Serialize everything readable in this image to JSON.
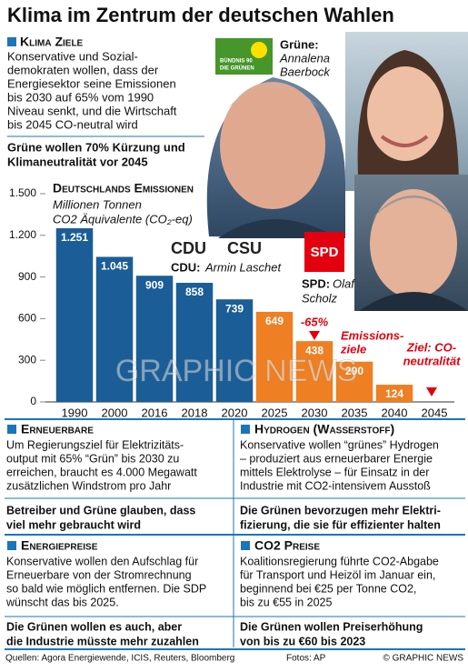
{
  "title": "Klima im Zentrum der deutschen Wahlen",
  "intro": {
    "heading": "Klima Ziele",
    "body": [
      "Konservative und Sozial-",
      "demokraten wollen, dass der",
      "Energiesektor seine Emissionen",
      "bis 2030 auf 65% vom 1990",
      "Niveau senkt, und die Wirtschaft",
      "bis 2045 CO-neutral wird"
    ],
    "highlight": [
      "Grüne wollen 70% Kürzung und",
      "Klimaneutralität vor 2045"
    ]
  },
  "parties": {
    "greens": {
      "logo": [
        "BÜNDNIS 90",
        "DIE GRÜNEN"
      ],
      "label": "Grüne:",
      "name": [
        "Annalena",
        "Baerbock"
      ]
    },
    "cdu": {
      "logo": [
        "CDU",
        "CSU"
      ],
      "label": "CDU:",
      "name": "Armin Laschet"
    },
    "spd": {
      "logo": "SPD",
      "label": "SPD:",
      "name": [
        "Olaf",
        "Scholz"
      ]
    }
  },
  "chart_data": {
    "type": "bar",
    "title": "Deutschlands Emissionen",
    "subtitle": [
      "Millionen Tonnen",
      "CO2 Äquivalente (CO₂-eq)"
    ],
    "categories": [
      "1990",
      "2000",
      "2016",
      "2018",
      "2020",
      "2025",
      "2030",
      "2035",
      "2040",
      "2045"
    ],
    "values": [
      1251,
      1045,
      909,
      858,
      739,
      649,
      438,
      290,
      124,
      null
    ],
    "value_labels": [
      "1.251",
      "1.045",
      "909",
      "858",
      "739",
      "649",
      "438",
      "290",
      "124",
      null
    ],
    "colors": [
      "#1b5d97",
      "#1b5d97",
      "#1b5d97",
      "#1b5d97",
      "#1b5d97",
      "#ee7f22",
      "#ee7f22",
      "#ee7f22",
      "#ee7f22",
      "#ee7f22"
    ],
    "ylim": [
      0,
      1500
    ],
    "yticks": [
      0,
      300,
      600,
      900,
      {
        "value": 1200,
        "label": "1.200"
      },
      {
        "value": 1500,
        "label": "1.500"
      }
    ],
    "grid": false,
    "annotations": [
      [
        "-65%"
      ],
      [
        "Emissions-",
        "ziele"
      ],
      [
        "Ziel: CO-",
        "neutralität"
      ]
    ]
  },
  "watermark": "GRAPHIC NEWS",
  "sections": [
    {
      "heading": "Erneuerbare",
      "body": [
        "Um Regierungsziel für Elektrizitäts-",
        "output mit 65% “Grün” bis 2030 zu",
        "erreichen, braucht es 4.000 Megawatt",
        "zusätzlichen Windstrom pro Jahr"
      ],
      "highlight": [
        "Betreiber und Grüne glauben, dass",
        "viel mehr gebraucht wird"
      ]
    },
    {
      "heading": "Hydrogen (Wasserstoff)",
      "body": [
        "Konservative wollen “grünes”  Hydrogen",
        "– produziert aus erneuerbarer Energie",
        "mittels Elektrolyse – für Einsatz in der",
        "Industrie mit CO2-intensivem Ausstoß"
      ],
      "highlight": [
        "Die Grünen bevorzugen mehr Elektri-",
        "fizierung, die sie für effizienter halten"
      ]
    },
    {
      "heading": "Energiepreise",
      "body": [
        "Konservative wollen den Aufschlag für",
        "Erneuerbare von der Stromrechnung",
        "so bald wie möglich entfernen. Die SDP",
        "wünscht das bis 2025."
      ],
      "highlight": [
        "Die Grünen wollen es auch, aber",
        "die Industrie müsste mehr zuzahlen"
      ]
    },
    {
      "heading": "CO2 Preise",
      "body": [
        "Koalitionsregierung führte CO2-Abgabe",
        "für Transport und Heizöl im Januar ein,",
        "beginnend bei €25 per Tonne CO2,",
        "bis zu €55 in 2025"
      ],
      "highlight": [
        "Die Grünen wollen Preiserhöhung",
        "von bis zu €60 bis 2023"
      ]
    }
  ],
  "footer": {
    "sources": "Quellen: Agora Energiewende, ICIS, Reuters, Bloomberg",
    "photos": "Fotos: AP",
    "credit": "© GRAPHIC NEWS"
  }
}
